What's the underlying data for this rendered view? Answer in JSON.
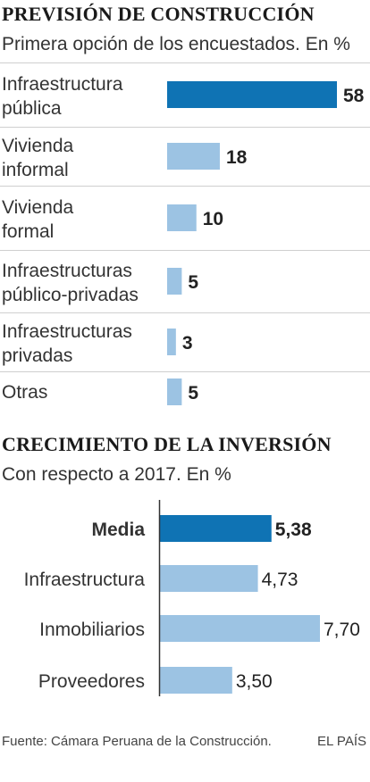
{
  "chart_data": [
    {
      "type": "bar",
      "orientation": "horizontal",
      "title": "PREVISIÓN DE CONSTRUCCIÓN",
      "subtitle": "Primera opción de los encuestados. En %",
      "categories": [
        [
          "Infraestructura",
          "pública"
        ],
        [
          "Vivienda",
          "informal"
        ],
        [
          "Vivienda",
          "formal"
        ],
        [
          "Infraestructuras",
          "público-privadas"
        ],
        [
          "Infraestructuras",
          "privadas"
        ],
        [
          "Otras"
        ]
      ],
      "values": [
        58,
        18,
        10,
        5,
        3,
        5
      ],
      "value_labels": [
        "58",
        "18",
        "10",
        "5",
        "3",
        "5"
      ],
      "highlight_index": 0,
      "colors": {
        "highlight": "#0f73b4",
        "default": "#9cc3e3",
        "divider": "#cfcfcf"
      }
    },
    {
      "type": "bar",
      "orientation": "horizontal",
      "title": "CRECIMIENTO DE LA INVERSIÓN",
      "subtitle": "Con respecto a 2017. En %",
      "categories": [
        "Media",
        "Infraestructura",
        "Inmobiliarios",
        "Proveedores"
      ],
      "values": [
        5.38,
        4.73,
        7.7,
        3.5
      ],
      "value_labels": [
        "5,38",
        "4,73",
        "7,70",
        "3,50"
      ],
      "highlight_index": 0,
      "colors": {
        "highlight": "#0f73b4",
        "default": "#9cc3e3",
        "axis": "#333333"
      }
    }
  ],
  "footer": {
    "source": "Fuente: Cámara Peruana de la Construcción.",
    "brand": "EL PAÍS"
  }
}
